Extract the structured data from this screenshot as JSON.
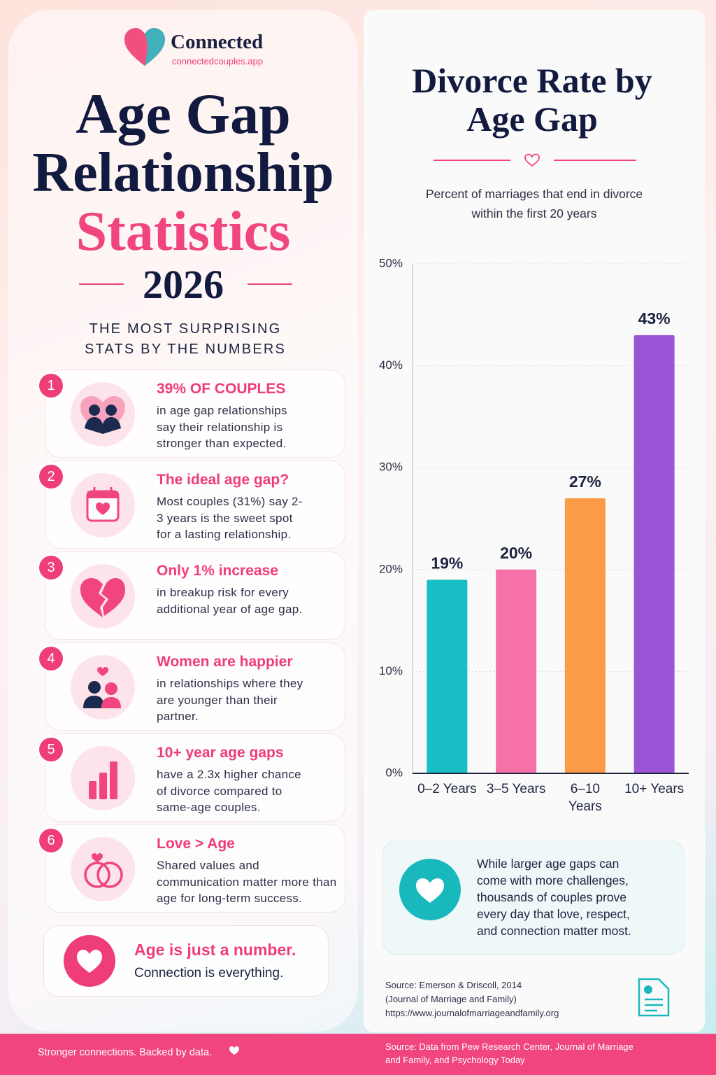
{
  "brand": {
    "name": "Connected",
    "url": "connectedcouples.app"
  },
  "header": {
    "title_line1": "Age Gap",
    "title_line2": "Relationship",
    "title_line3": "Statistics",
    "year": "2026",
    "subtitle": "THE MOST SURPRISING STATS BY THE NUMBERS"
  },
  "stats": [
    {
      "number": "1",
      "headline": "39% OF COUPLES",
      "text": "in age gap relationships say their relationship is stronger than expected."
    },
    {
      "number": "2",
      "headline": "The ideal age gap?",
      "text": "Most couples (31%) say 2-3 years is the sweet spot for a lasting relationship."
    },
    {
      "number": "3",
      "headline": "Only 1% increase",
      "text": "in breakup risk for every additional year of age gap."
    },
    {
      "number": "4",
      "headline": "Women are happier",
      "text": "in relationships where they are younger than their partner."
    },
    {
      "number": "5",
      "headline": "10+ year age gaps",
      "text": "have a 2.3x higher chance of divorce compared to same-age couples."
    },
    {
      "number": "6",
      "headline": "Love > Age",
      "text": "Shared values and communication matter more than age for long-term success."
    }
  ],
  "tagline": {
    "title": "Age is just a number.",
    "text": "Connection is everything."
  },
  "chart_data": {
    "type": "bar",
    "title": "Divorce Rate by Age Gap",
    "subtitle": "Percent of marriages that end in divorce within the first 20 years",
    "categories": [
      "0–2 Years",
      "3–5 Years",
      "6–10 Years",
      "10+ Years"
    ],
    "values": [
      19,
      20,
      27,
      43
    ],
    "value_labels": [
      "19%",
      "20%",
      "27%",
      "43%"
    ],
    "colors": [
      "#17bfc4",
      "#f771a9",
      "#fb9a47",
      "#9a55d6"
    ],
    "ylim": [
      0,
      50
    ],
    "yticks": [
      {
        "value": 0,
        "label": "0%"
      },
      {
        "value": 10,
        "label": "10%"
      },
      {
        "value": 20,
        "label": "20%"
      },
      {
        "value": 30,
        "label": "30%"
      },
      {
        "value": 40,
        "label": "40%"
      },
      {
        "value": 50,
        "label": "50%"
      }
    ],
    "grid": true
  },
  "callout": {
    "text": "While larger age gaps can come with more challenges, thousands of couples prove every day that love, respect, and connection matter most."
  },
  "source": {
    "label": "Source:",
    "text": "Emerson & Driscoll, 2014",
    "journal": "(Journal of Marriage and Family)",
    "url": "https://www.journalofmarriageandfamily.org"
  },
  "footer": {
    "left": "Stronger connections. Backed by data.",
    "right": "Source: Data from Pew Research Center, Journal of Marriage and Family, and Psychology Today"
  }
}
